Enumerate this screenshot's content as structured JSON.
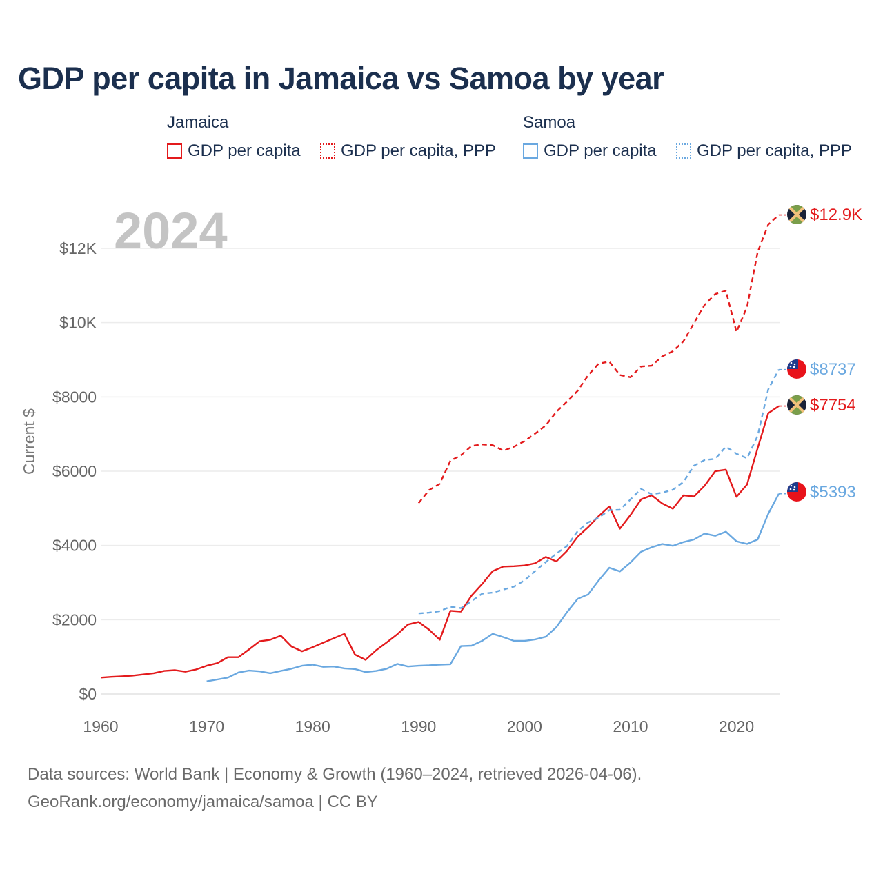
{
  "title": "GDP per capita in Jamaica vs Samoa by year",
  "legend": {
    "groups": [
      {
        "name": "Jamaica",
        "items": [
          {
            "label": "GDP per capita",
            "color": "#e31a1c",
            "style": "solid"
          },
          {
            "label": "GDP per capita, PPP",
            "color": "#e31a1c",
            "style": "dotted"
          }
        ]
      },
      {
        "name": "Samoa",
        "items": [
          {
            "label": "GDP per capita",
            "color": "#6aa8e0",
            "style": "solid"
          },
          {
            "label": "GDP per capita, PPP",
            "color": "#6aa8e0",
            "style": "dotted"
          }
        ]
      }
    ]
  },
  "year_label": "2024",
  "source_line1": "Data sources: World Bank | Economy & Growth (1960–2024, retrieved 2026-04-06).",
  "source_line2": "GeoRank.org/economy/jamaica/samoa | CC BY",
  "chart_data": {
    "type": "line",
    "title": "GDP per capita in Jamaica vs Samoa by year",
    "xlabel": "",
    "ylabel": "Current $",
    "xlim": [
      1960,
      2024
    ],
    "ylim": [
      0,
      13000
    ],
    "xticks": [
      1960,
      1970,
      1980,
      1990,
      2000,
      2010,
      2020
    ],
    "xtick_labels": [
      "1960",
      "1970",
      "1980",
      "1990",
      "2000",
      "2010",
      "2020"
    ],
    "yticks": [
      0,
      2000,
      4000,
      6000,
      8000,
      10000,
      12000
    ],
    "ytick_labels": [
      "$0",
      "$2000",
      "$4000",
      "$6000",
      "$8000",
      "$10K",
      "$12K"
    ],
    "grid": true,
    "series": [
      {
        "name": "Jamaica GDP per capita",
        "color": "#e31a1c",
        "dash": "solid",
        "end_label": "$7754",
        "x": [
          1960,
          1961,
          1962,
          1963,
          1964,
          1965,
          1966,
          1967,
          1968,
          1969,
          1970,
          1971,
          1972,
          1973,
          1974,
          1975,
          1976,
          1977,
          1978,
          1979,
          1980,
          1981,
          1982,
          1983,
          1984,
          1985,
          1986,
          1987,
          1988,
          1989,
          1990,
          1991,
          1992,
          1993,
          1994,
          1995,
          1996,
          1997,
          1998,
          1999,
          2000,
          2001,
          2002,
          2003,
          2004,
          2005,
          2006,
          2007,
          2008,
          2009,
          2010,
          2011,
          2012,
          2013,
          2014,
          2015,
          2016,
          2017,
          2018,
          2019,
          2020,
          2021,
          2022,
          2023,
          2024
        ],
        "values": [
          440,
          460,
          475,
          495,
          525,
          560,
          620,
          640,
          600,
          660,
          760,
          830,
          990,
          990,
          1200,
          1420,
          1460,
          1570,
          1280,
          1150,
          1260,
          1380,
          1500,
          1620,
          1060,
          920,
          1180,
          1390,
          1610,
          1870,
          1940,
          1730,
          1460,
          2240,
          2220,
          2650,
          2960,
          3310,
          3430,
          3440,
          3460,
          3520,
          3690,
          3570,
          3850,
          4230,
          4490,
          4790,
          5050,
          4450,
          4820,
          5240,
          5350,
          5130,
          4990,
          5350,
          5320,
          5610,
          6000,
          6040,
          5310,
          5640,
          6620,
          7560,
          7754
        ]
      },
      {
        "name": "Jamaica GDP per capita, PPP",
        "color": "#e31a1c",
        "dash": "dashed",
        "end_label": "$12.9K",
        "x": [
          1990,
          1991,
          1992,
          1993,
          1994,
          1995,
          1996,
          1997,
          1998,
          1999,
          2000,
          2001,
          2002,
          2003,
          2004,
          2005,
          2006,
          2007,
          2008,
          2009,
          2010,
          2011,
          2012,
          2013,
          2014,
          2015,
          2016,
          2017,
          2018,
          2019,
          2020,
          2021,
          2022,
          2023,
          2024
        ],
        "values": [
          5140,
          5490,
          5660,
          6280,
          6430,
          6680,
          6720,
          6700,
          6550,
          6660,
          6810,
          7010,
          7230,
          7600,
          7870,
          8160,
          8580,
          8900,
          8950,
          8590,
          8530,
          8820,
          8840,
          9090,
          9230,
          9500,
          9990,
          10480,
          10770,
          10860,
          9750,
          10420,
          11900,
          12640,
          12900
        ]
      },
      {
        "name": "Samoa GDP per capita",
        "color": "#6aa8e0",
        "dash": "solid",
        "end_label": "$5393",
        "x": [
          1970,
          1971,
          1972,
          1973,
          1974,
          1975,
          1976,
          1977,
          1978,
          1979,
          1980,
          1981,
          1982,
          1983,
          1984,
          1985,
          1986,
          1987,
          1988,
          1989,
          1990,
          1991,
          1992,
          1993,
          1994,
          1995,
          1996,
          1997,
          1998,
          1999,
          2000,
          2001,
          2002,
          2003,
          2004,
          2005,
          2006,
          2007,
          2008,
          2009,
          2010,
          2011,
          2012,
          2013,
          2014,
          2015,
          2016,
          2017,
          2018,
          2019,
          2020,
          2021,
          2022,
          2023,
          2024
        ],
        "values": [
          340,
          390,
          440,
          580,
          630,
          610,
          560,
          620,
          680,
          760,
          790,
          730,
          740,
          690,
          670,
          590,
          620,
          680,
          810,
          740,
          760,
          770,
          790,
          800,
          1290,
          1300,
          1430,
          1620,
          1530,
          1430,
          1430,
          1470,
          1540,
          1800,
          2200,
          2560,
          2680,
          3060,
          3400,
          3300,
          3540,
          3830,
          3950,
          4040,
          3990,
          4090,
          4160,
          4320,
          4260,
          4370,
          4110,
          4040,
          4160,
          4850,
          5393
        ]
      },
      {
        "name": "Samoa GDP per capita, PPP",
        "color": "#6aa8e0",
        "dash": "dashed",
        "end_label": "$8737",
        "x": [
          1990,
          1991,
          1992,
          1993,
          1994,
          1995,
          1996,
          1997,
          1998,
          1999,
          2000,
          2001,
          2002,
          2003,
          2004,
          2005,
          2006,
          2007,
          2008,
          2009,
          2010,
          2011,
          2012,
          2013,
          2014,
          2015,
          2016,
          2017,
          2018,
          2019,
          2020,
          2021,
          2022,
          2023,
          2024
        ],
        "values": [
          2170,
          2190,
          2230,
          2350,
          2310,
          2500,
          2700,
          2730,
          2810,
          2890,
          3060,
          3310,
          3550,
          3780,
          3980,
          4380,
          4620,
          4750,
          4950,
          4960,
          5240,
          5520,
          5380,
          5420,
          5500,
          5710,
          6150,
          6300,
          6330,
          6660,
          6470,
          6350,
          6950,
          8200,
          8737
        ]
      }
    ]
  }
}
